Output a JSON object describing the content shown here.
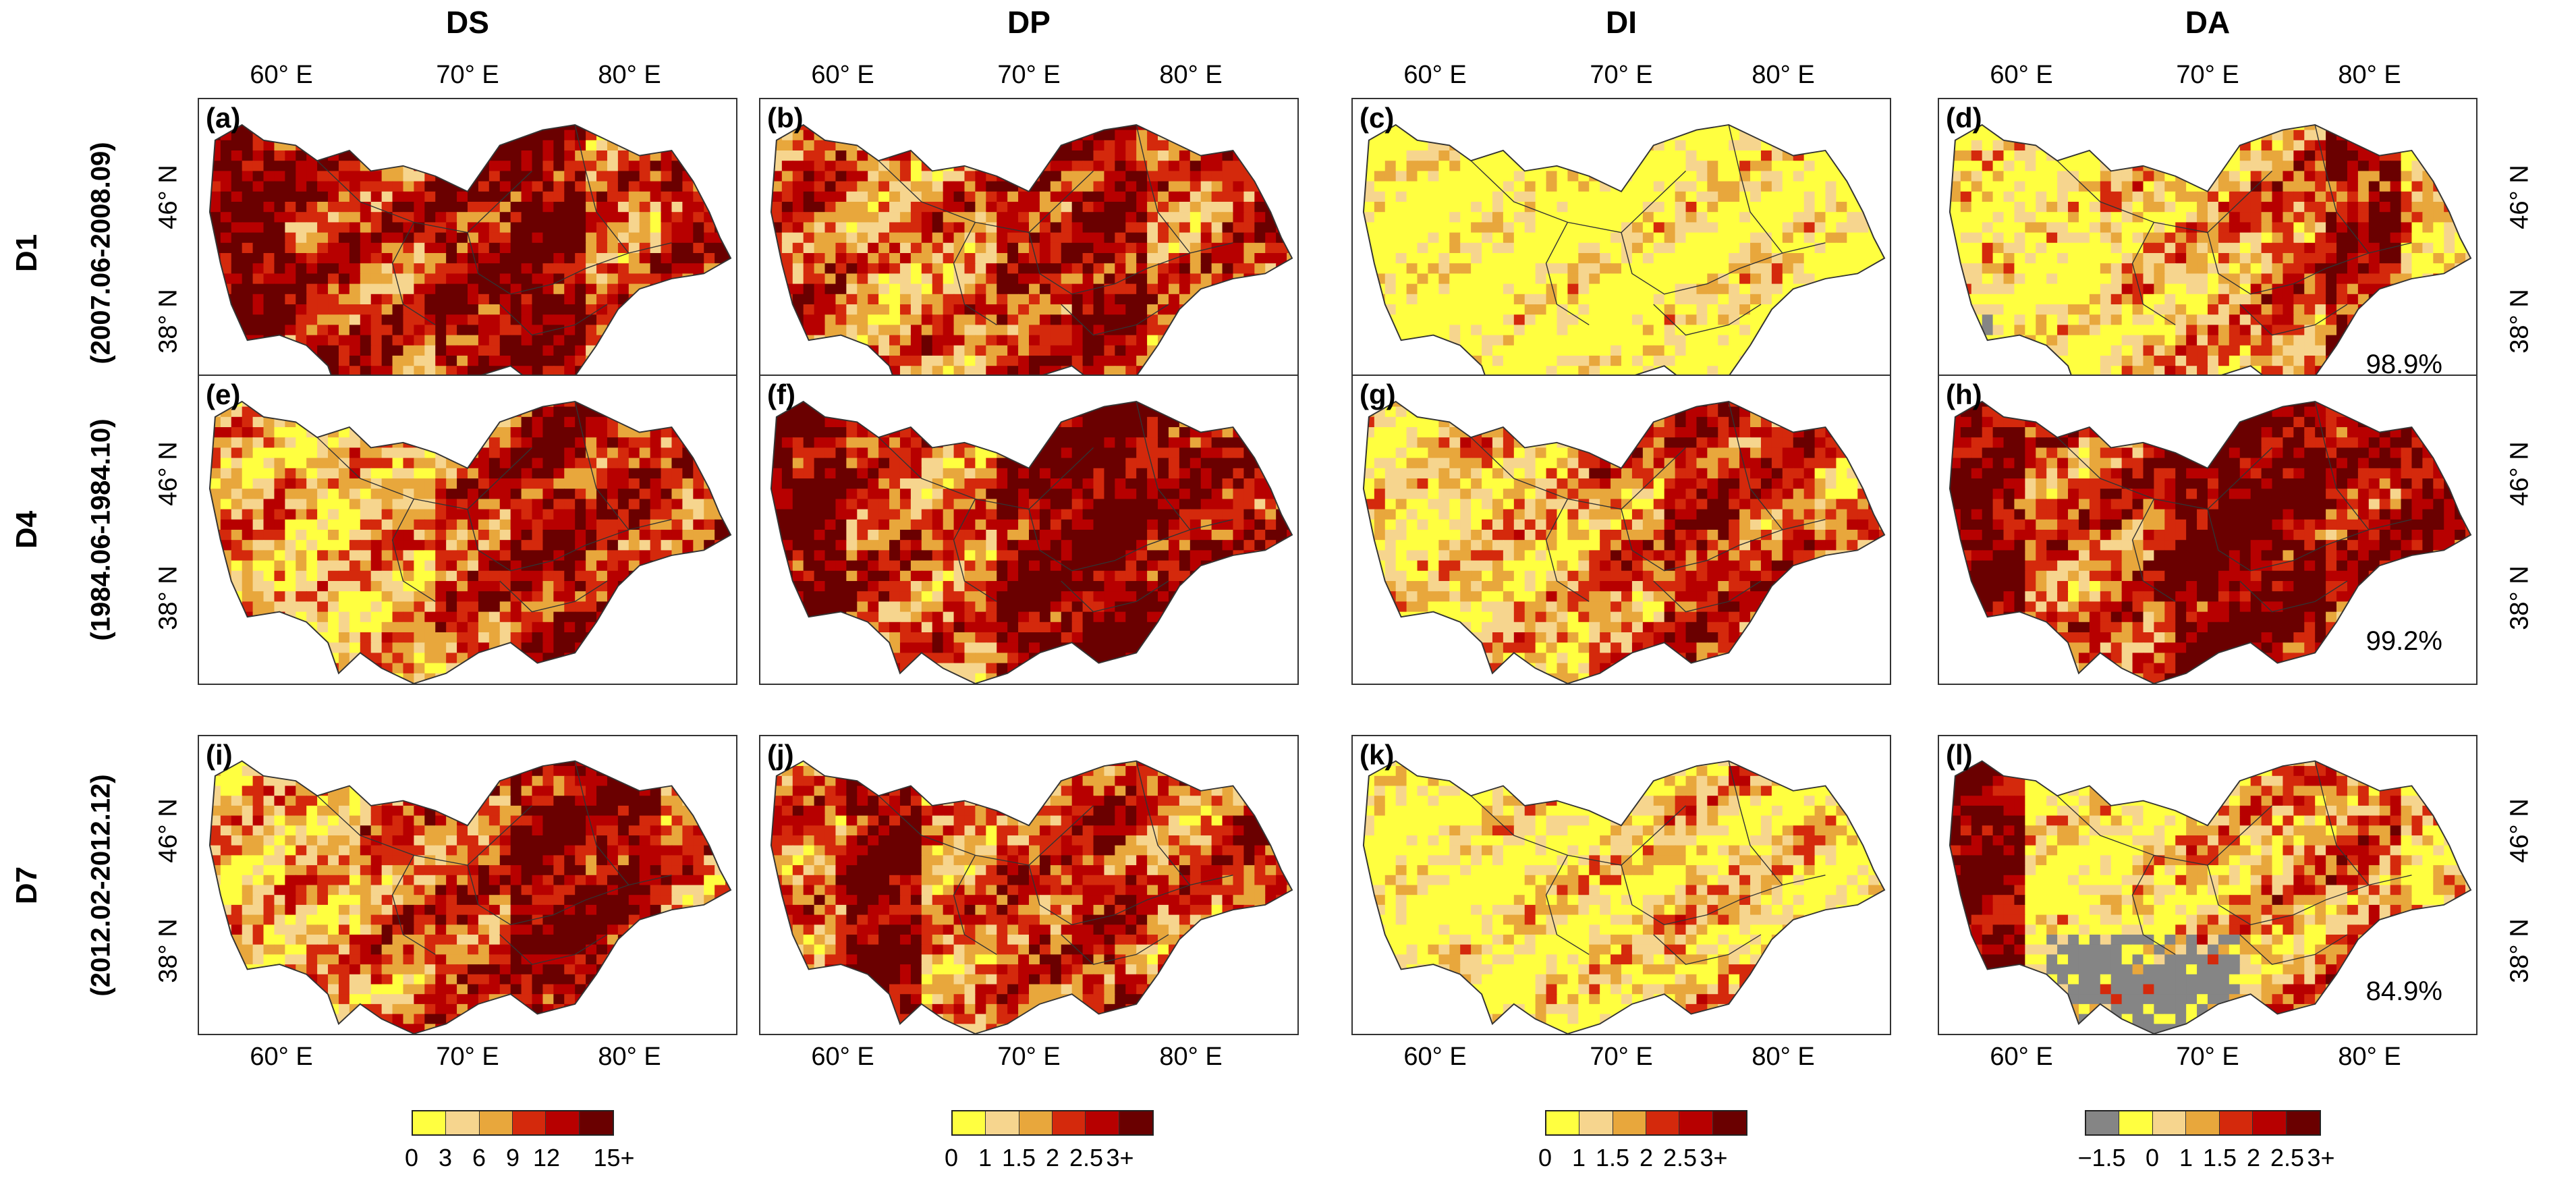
{
  "columns": [
    {
      "label": "DS",
      "unit": "",
      "legend_colors": [
        "#ffff40",
        "#f6d58e",
        "#e8a73c",
        "#d4290c",
        "#b70000",
        "#6a0000"
      ],
      "legend_ticks": [
        "0",
        "3",
        "6",
        "9",
        "12",
        "15+"
      ]
    },
    {
      "label": "DP",
      "legend_colors": [
        "#ffff40",
        "#f6d58e",
        "#e8a73c",
        "#d4290c",
        "#b70000",
        "#6a0000"
      ],
      "legend_ticks": [
        "0",
        "1",
        "1.5",
        "2",
        "2.5",
        "3+"
      ]
    },
    {
      "label": "DI",
      "legend_colors": [
        "#ffff40",
        "#f6d58e",
        "#e8a73c",
        "#d4290c",
        "#b70000",
        "#6a0000"
      ],
      "legend_ticks": [
        "0",
        "1",
        "1.5",
        "2",
        "2.5",
        "3+"
      ]
    },
    {
      "label": "DA",
      "legend_colors": [
        "#858585",
        "#ffff40",
        "#f6d58e",
        "#e8a73c",
        "#d4290c",
        "#b70000",
        "#6a0000"
      ],
      "legend_ticks": [
        "−1.5",
        "0",
        "1",
        "1.5",
        "2",
        "2.5",
        "3+"
      ]
    }
  ],
  "rows": [
    {
      "label": "D1",
      "period": "(2007.06-2008.09)",
      "pct": "98.9%"
    },
    {
      "label": "D4",
      "period": "(1984.06-1984.10)",
      "pct": "99.2%"
    },
    {
      "label": "D7",
      "period": "(2012.02-2012.12)",
      "pct": "84.9%"
    }
  ],
  "panels": [
    "(a)",
    "(b)",
    "(c)",
    "(d)",
    "(e)",
    "(f)",
    "(g)",
    "(h)",
    "(i)",
    "(j)",
    "(k)",
    "(l)"
  ],
  "lon_labels": [
    "60° E",
    "70° E",
    "80° E"
  ],
  "lat_labels": [
    "46° N",
    "38° N"
  ],
  "colors": {
    "c0": "#ffff40",
    "c1": "#f6d58e",
    "c2": "#e8a73c",
    "c3": "#d4290c",
    "c4": "#b70000",
    "c5": "#6a0000",
    "grey": "#858585",
    "outline": "#333333"
  },
  "severity": {
    "DS": [
      [
        0.9,
        0.7,
        0.6,
        0.8,
        0.9,
        0.5,
        0.7
      ],
      [
        0.4,
        0.3,
        0.4,
        0.6,
        0.8,
        0.7,
        0.6
      ],
      [
        0.3,
        0.4,
        0.5,
        0.6,
        0.9,
        0.8,
        0.5
      ]
    ],
    "DP": [
      [
        0.6,
        0.4,
        0.5,
        0.7,
        0.8,
        0.5,
        0.6
      ],
      [
        0.9,
        0.6,
        0.5,
        0.9,
        0.95,
        0.8,
        0.7
      ],
      [
        0.5,
        0.9,
        0.4,
        0.6,
        0.7,
        0.5,
        0.6
      ]
    ],
    "DI": [
      [
        0.05,
        0.05,
        0.1,
        0.05,
        0.1,
        0.15,
        0.05
      ],
      [
        0.2,
        0.3,
        0.3,
        0.5,
        0.7,
        0.6,
        0.4
      ],
      [
        0.05,
        0.1,
        0.15,
        0.2,
        0.3,
        0.25,
        0.1
      ]
    ],
    "DA": [
      [
        0.2,
        0.1,
        0.3,
        0.4,
        0.5,
        0.8,
        0.3
      ],
      [
        0.9,
        0.5,
        0.6,
        0.95,
        0.9,
        0.7,
        0.8
      ],
      [
        0.9,
        0.1,
        0.2,
        0.3,
        0.4,
        0.5,
        0.2
      ]
    ]
  }
}
